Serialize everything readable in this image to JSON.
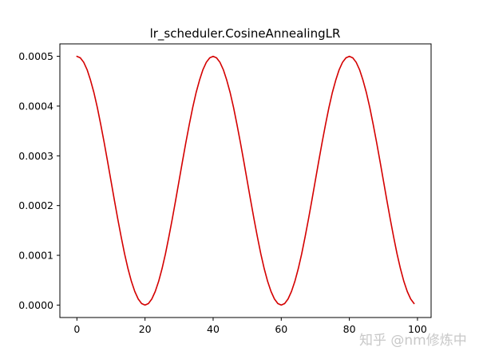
{
  "chart_data": {
    "type": "line",
    "title": "lr_scheduler.CosineAnnealingLR",
    "xlabel": "",
    "ylabel": "",
    "xlim": [
      -5,
      104
    ],
    "ylim": [
      -2.5e-05,
      0.000525
    ],
    "x_ticks": [
      0,
      20,
      40,
      60,
      80,
      100
    ],
    "x_tick_labels": [
      "0",
      "20",
      "40",
      "60",
      "80",
      "100"
    ],
    "y_ticks": [
      0,
      0.0001,
      0.0002,
      0.0003,
      0.0004,
      0.0005
    ],
    "y_tick_labels": [
      "0.0000",
      "0.0001",
      "0.0002",
      "0.0003",
      "0.0004",
      "0.0005"
    ],
    "grid": false,
    "series": [
      {
        "color": "#d40000",
        "x": [
          0,
          1,
          2,
          3,
          4,
          5,
          6,
          7,
          8,
          9,
          10,
          11,
          12,
          13,
          14,
          15,
          16,
          17,
          18,
          19,
          20,
          21,
          22,
          23,
          24,
          25,
          26,
          27,
          28,
          29,
          30,
          31,
          32,
          33,
          34,
          35,
          36,
          37,
          38,
          39,
          40,
          41,
          42,
          43,
          44,
          45,
          46,
          47,
          48,
          49,
          50,
          51,
          52,
          53,
          54,
          55,
          56,
          57,
          58,
          59,
          60,
          61,
          62,
          63,
          64,
          65,
          66,
          67,
          68,
          69,
          70,
          71,
          72,
          73,
          74,
          75,
          76,
          77,
          78,
          79,
          80,
          81,
          82,
          83,
          84,
          85,
          86,
          87,
          88,
          89,
          90,
          91,
          92,
          93,
          94,
          95,
          96,
          97,
          98,
          99
        ],
        "y": [
          0.0005,
          0.000497,
          0.000488,
          0.000473,
          0.000452,
          0.000427,
          0.000397,
          0.000363,
          0.000327,
          0.000289,
          0.00025,
          0.000211,
          0.000173,
          0.000137,
          0.000103,
          7.32e-05,
          4.77e-05,
          2.73e-05,
          1.23e-05,
          3.1e-06,
          0.0,
          3.1e-06,
          1.23e-05,
          2.73e-05,
          4.77e-05,
          7.32e-05,
          0.000103,
          0.000137,
          0.000173,
          0.000211,
          0.00025,
          0.000289,
          0.000327,
          0.000363,
          0.000397,
          0.000427,
          0.000452,
          0.000473,
          0.000488,
          0.000497,
          0.0005,
          0.000497,
          0.000488,
          0.000473,
          0.000452,
          0.000427,
          0.000397,
          0.000363,
          0.000327,
          0.000289,
          0.00025,
          0.000211,
          0.000173,
          0.000137,
          0.000103,
          7.32e-05,
          4.77e-05,
          2.73e-05,
          1.23e-05,
          3.1e-06,
          0.0,
          3.1e-06,
          1.23e-05,
          2.73e-05,
          4.77e-05,
          7.32e-05,
          0.000103,
          0.000137,
          0.000173,
          0.000211,
          0.00025,
          0.000289,
          0.000327,
          0.000363,
          0.000397,
          0.000427,
          0.000452,
          0.000473,
          0.000488,
          0.000497,
          0.0005,
          0.000497,
          0.000488,
          0.000473,
          0.000452,
          0.000427,
          0.000397,
          0.000363,
          0.000327,
          0.000289,
          0.00025,
          0.000211,
          0.000173,
          0.000137,
          0.000103,
          7.32e-05,
          4.77e-05,
          2.73e-05,
          1.23e-05,
          3.1e-06
        ]
      }
    ]
  },
  "watermark": "知乎 @nm修炼中"
}
